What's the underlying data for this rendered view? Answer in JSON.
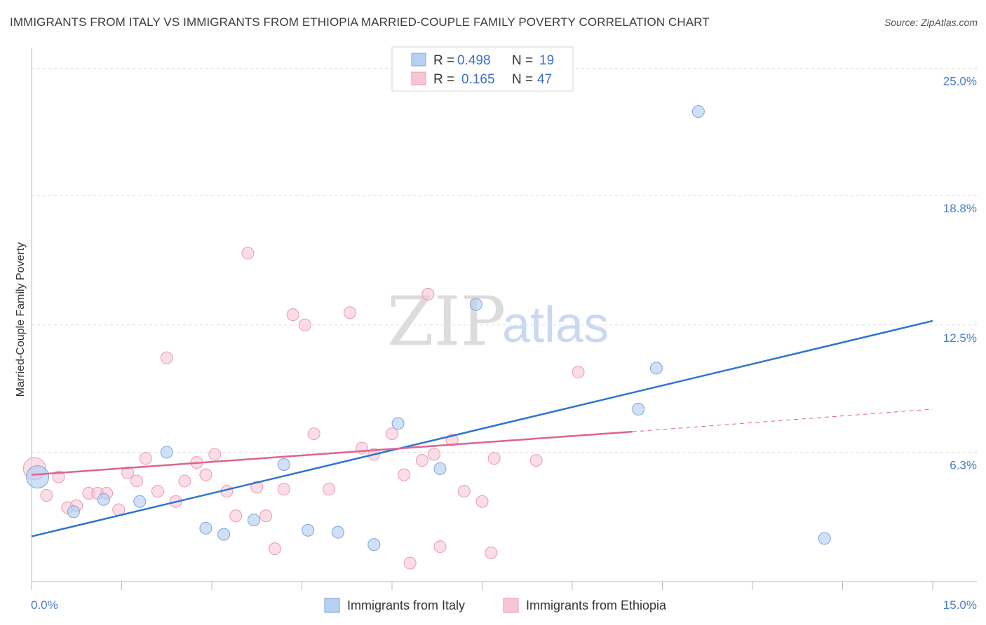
{
  "title": "IMMIGRANTS FROM ITALY VS IMMIGRANTS FROM ETHIOPIA MARRIED-COUPLE FAMILY POVERTY CORRELATION CHART",
  "source": "Source: ZipAtlas.com",
  "watermark": {
    "zip": "ZIP",
    "atlas": "atlas"
  },
  "colors": {
    "italy_fill": "#b7d0f2",
    "italy_stroke": "#7da5dc",
    "italy_line": "#2f74d0",
    "ethiopia_fill": "#f7c6d4",
    "ethiopia_stroke": "#e99ab2",
    "ethiopia_line": "#e0628f"
  },
  "legend": {
    "rows": [
      {
        "r_label": "R =",
        "r_value": "0.498",
        "n_label": "N =",
        "n_value": "19"
      },
      {
        "r_label": "R =",
        "r_value": "0.165",
        "n_label": "N =",
        "n_value": "47"
      }
    ]
  },
  "bottom_legend": {
    "italy": "Immigrants from Italy",
    "ethiopia": "Immigrants from Ethiopia"
  },
  "chart_data": {
    "type": "scatter",
    "title": "IMMIGRANTS FROM ITALY VS IMMIGRANTS FROM ETHIOPIA MARRIED-COUPLE FAMILY POVERTY CORRELATION CHART",
    "xlabel": "",
    "ylabel": "Married-Couple Family Poverty",
    "xlim": [
      0,
      15
    ],
    "ylim": [
      0,
      25.6
    ],
    "x_tick_labels": [
      "0.0%",
      "15.0%"
    ],
    "y_ticks": [
      6.3,
      12.5,
      18.8,
      25.0
    ],
    "y_tick_labels": [
      "6.3%",
      "12.5%",
      "18.8%",
      "25.0%"
    ],
    "legend_position": "top-center",
    "series": [
      {
        "name": "Immigrants from Italy",
        "R": 0.498,
        "N": 19,
        "points": [
          [
            0.1,
            5.1
          ],
          [
            0.7,
            3.4
          ],
          [
            1.2,
            4.0
          ],
          [
            1.8,
            3.9
          ],
          [
            2.25,
            6.3
          ],
          [
            2.9,
            2.6
          ],
          [
            3.2,
            2.3
          ],
          [
            3.7,
            3.0
          ],
          [
            4.2,
            5.7
          ],
          [
            4.6,
            2.5
          ],
          [
            5.1,
            2.4
          ],
          [
            5.7,
            1.8
          ],
          [
            6.1,
            7.7
          ],
          [
            6.8,
            5.5
          ],
          [
            7.4,
            13.5
          ],
          [
            10.1,
            8.4
          ],
          [
            10.4,
            10.4
          ],
          [
            11.1,
            22.9
          ],
          [
            13.2,
            2.1
          ]
        ],
        "trend": {
          "x": [
            0,
            15
          ],
          "y": [
            2.2,
            12.7
          ]
        }
      },
      {
        "name": "Immigrants from Ethiopia",
        "R": 0.165,
        "N": 47,
        "points": [
          [
            0.05,
            5.5
          ],
          [
            0.25,
            4.2
          ],
          [
            0.45,
            5.1
          ],
          [
            0.6,
            3.6
          ],
          [
            0.75,
            3.7
          ],
          [
            0.95,
            4.3
          ],
          [
            1.1,
            4.3
          ],
          [
            1.25,
            4.3
          ],
          [
            1.45,
            3.5
          ],
          [
            1.6,
            5.3
          ],
          [
            1.75,
            4.9
          ],
          [
            1.9,
            6.0
          ],
          [
            2.1,
            4.4
          ],
          [
            2.25,
            10.9
          ],
          [
            2.4,
            3.9
          ],
          [
            2.55,
            4.9
          ],
          [
            2.75,
            5.8
          ],
          [
            2.9,
            5.2
          ],
          [
            3.05,
            6.2
          ],
          [
            3.25,
            4.4
          ],
          [
            3.4,
            3.2
          ],
          [
            3.6,
            16.0
          ],
          [
            3.75,
            4.6
          ],
          [
            3.9,
            3.2
          ],
          [
            4.05,
            1.6
          ],
          [
            4.2,
            4.5
          ],
          [
            4.35,
            13.0
          ],
          [
            4.55,
            12.5
          ],
          [
            4.7,
            7.2
          ],
          [
            4.95,
            4.5
          ],
          [
            5.3,
            13.1
          ],
          [
            5.5,
            6.5
          ],
          [
            5.7,
            6.2
          ],
          [
            6.0,
            7.2
          ],
          [
            6.2,
            5.2
          ],
          [
            6.3,
            0.9
          ],
          [
            6.5,
            5.9
          ],
          [
            6.6,
            14.0
          ],
          [
            6.7,
            6.2
          ],
          [
            6.8,
            1.7
          ],
          [
            7.0,
            6.9
          ],
          [
            7.2,
            4.4
          ],
          [
            7.5,
            3.9
          ],
          [
            7.65,
            1.4
          ],
          [
            7.7,
            6.0
          ],
          [
            8.4,
            5.9
          ],
          [
            9.1,
            10.2
          ]
        ],
        "trend": {
          "x": [
            0,
            10.0
          ],
          "y": [
            5.2,
            7.3
          ]
        },
        "trend_dashed": {
          "x": [
            10.0,
            15
          ],
          "y": [
            7.3,
            8.4
          ]
        }
      }
    ]
  }
}
